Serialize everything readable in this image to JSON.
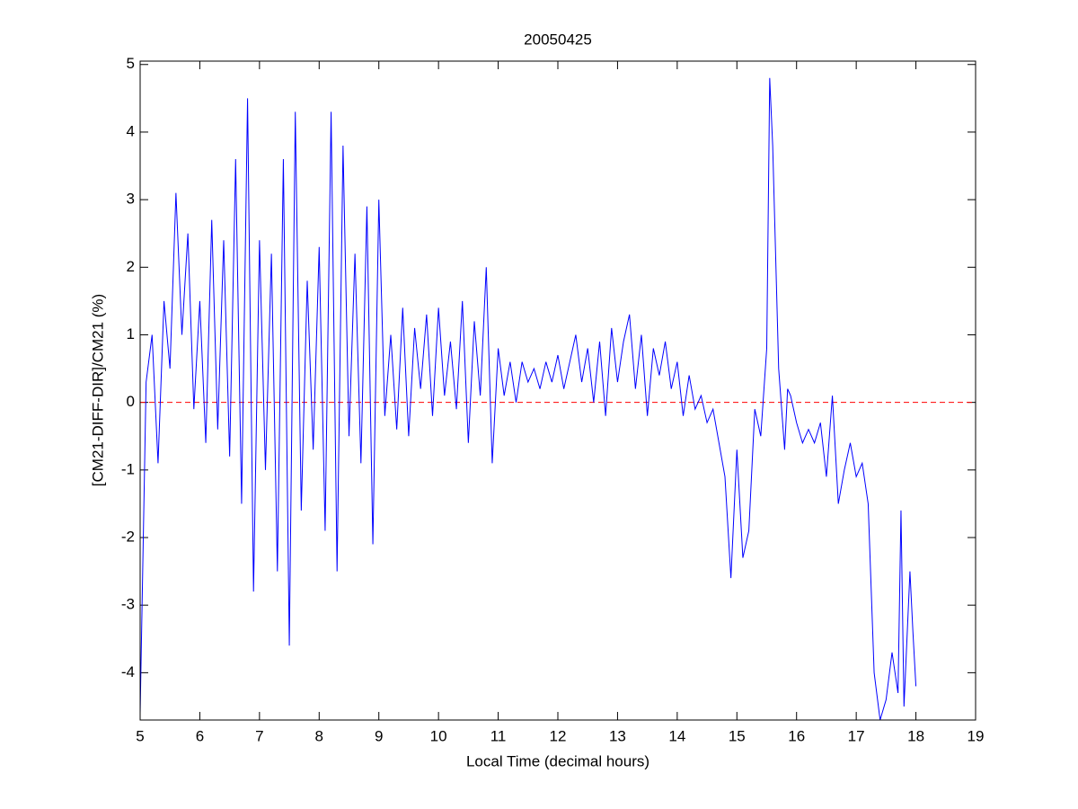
{
  "chart_data": {
    "type": "line",
    "title": "20050425",
    "x_label": "Local Time (decimal hours)",
    "y_label": "[CM21-DIFF-DIR]/CM21 (%)",
    "xlim": [
      5,
      19
    ],
    "ylim": [
      -4.7,
      5.05
    ],
    "xticks": [
      5,
      6,
      7,
      8,
      9,
      10,
      11,
      12,
      13,
      14,
      15,
      16,
      17,
      18,
      19
    ],
    "yticks": [
      -4,
      -3,
      -2,
      -1,
      0,
      1,
      2,
      3,
      4,
      5
    ],
    "reference_line": {
      "value": 0,
      "color": "#ff0000"
    },
    "series": [
      {
        "color": "#0000ff",
        "x": [
          5.0,
          5.1,
          5.2,
          5.3,
          5.4,
          5.5,
          5.6,
          5.7,
          5.8,
          5.9,
          6.0,
          6.1,
          6.2,
          6.3,
          6.4,
          6.5,
          6.6,
          6.7,
          6.8,
          6.9,
          7.0,
          7.1,
          7.2,
          7.3,
          7.4,
          7.5,
          7.6,
          7.7,
          7.8,
          7.9,
          8.0,
          8.1,
          8.2,
          8.3,
          8.4,
          8.5,
          8.6,
          8.7,
          8.8,
          8.9,
          9.0,
          9.1,
          9.2,
          9.3,
          9.4,
          9.5,
          9.6,
          9.7,
          9.8,
          9.9,
          10.0,
          10.1,
          10.2,
          10.3,
          10.4,
          10.5,
          10.6,
          10.7,
          10.8,
          10.9,
          11.0,
          11.1,
          11.2,
          11.3,
          11.4,
          11.5,
          11.6,
          11.7,
          11.8,
          11.9,
          12.0,
          12.1,
          12.2,
          12.3,
          12.4,
          12.5,
          12.6,
          12.7,
          12.8,
          12.9,
          13.0,
          13.1,
          13.2,
          13.3,
          13.4,
          13.5,
          13.6,
          13.7,
          13.8,
          13.9,
          14.0,
          14.1,
          14.2,
          14.3,
          14.4,
          14.5,
          14.6,
          14.7,
          14.8,
          14.9,
          15.0,
          15.1,
          15.2,
          15.3,
          15.4,
          15.5,
          15.55,
          15.6,
          15.7,
          15.8,
          15.85,
          15.9,
          16.0,
          16.1,
          16.2,
          16.3,
          16.4,
          16.5,
          16.6,
          16.7,
          16.8,
          16.9,
          17.0,
          17.1,
          17.2,
          17.3,
          17.4,
          17.5,
          17.6,
          17.7,
          17.75,
          17.8,
          17.9,
          17.95,
          18.0
        ],
        "values": [
          -4.6,
          0.3,
          1.0,
          -0.9,
          1.5,
          0.5,
          3.1,
          1.0,
          2.5,
          -0.1,
          1.5,
          -0.6,
          2.7,
          -0.4,
          2.4,
          -0.8,
          3.6,
          -1.5,
          4.5,
          -2.8,
          2.4,
          -1.0,
          2.2,
          -2.5,
          3.6,
          -3.6,
          4.3,
          -1.6,
          1.8,
          -0.7,
          2.3,
          -1.9,
          4.3,
          -2.5,
          3.8,
          -0.5,
          2.2,
          -0.9,
          2.9,
          -2.1,
          3.0,
          -0.2,
          1.0,
          -0.4,
          1.4,
          -0.5,
          1.1,
          0.2,
          1.3,
          -0.2,
          1.4,
          0.1,
          0.9,
          -0.1,
          1.5,
          -0.6,
          1.2,
          0.1,
          2.0,
          -0.9,
          0.8,
          0.1,
          0.6,
          0.0,
          0.6,
          0.3,
          0.5,
          0.2,
          0.6,
          0.3,
          0.7,
          0.2,
          0.6,
          1.0,
          0.3,
          0.8,
          0.0,
          0.9,
          -0.2,
          1.1,
          0.3,
          0.9,
          1.3,
          0.2,
          1.0,
          -0.2,
          0.8,
          0.4,
          0.9,
          0.2,
          0.6,
          -0.2,
          0.4,
          -0.1,
          0.1,
          -0.3,
          -0.1,
          -0.6,
          -1.1,
          -2.6,
          -0.7,
          -2.3,
          -1.9,
          -0.1,
          -0.5,
          0.8,
          4.8,
          3.8,
          0.5,
          -0.7,
          0.2,
          0.1,
          -0.3,
          -0.6,
          -0.4,
          -0.6,
          -0.3,
          -1.1,
          0.1,
          -1.5,
          -1.0,
          -0.6,
          -1.1,
          -0.9,
          -1.5,
          -4.0,
          -4.7,
          -4.4,
          -3.7,
          -4.3,
          -1.6,
          -4.5,
          -2.5,
          -3.4,
          -4.2
        ]
      }
    ]
  }
}
